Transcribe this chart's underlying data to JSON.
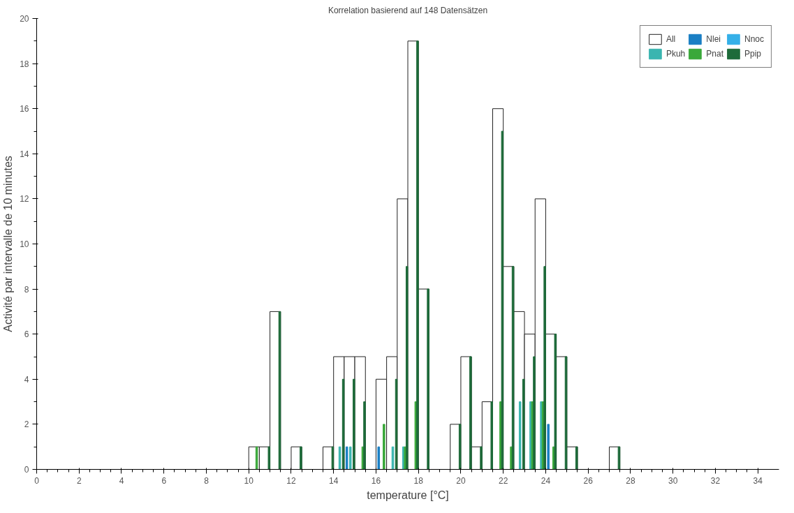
{
  "chart_data": {
    "type": "bar",
    "title": "Korrelation basierend auf 148 Datensätzen",
    "xlabel": "temperature [°C]",
    "ylabel": "Activité par intervalle de 10 minutes",
    "x": [
      10.25,
      10.75,
      11.25,
      12.25,
      13.75,
      14.25,
      14.75,
      15.25,
      16.25,
      16.75,
      17.25,
      17.75,
      18.25,
      19.75,
      20.25,
      20.75,
      21.25,
      21.75,
      22.25,
      22.75,
      23.25,
      23.75,
      24.25,
      24.75,
      25.25,
      27.25
    ],
    "series": [
      {
        "name": "All",
        "color": "#ffffff",
        "values": [
          1,
          1,
          7,
          1,
          1,
          5,
          5,
          5,
          4,
          5,
          12,
          19,
          8,
          2,
          5,
          1,
          3,
          16,
          9,
          7,
          6,
          12,
          6,
          5,
          1,
          1
        ]
      },
      {
        "name": "Nlei",
        "color": "#1a7fc4",
        "values": [
          0,
          0,
          0,
          0,
          0,
          0,
          1,
          0,
          1,
          0,
          0,
          0,
          0,
          0,
          0,
          0,
          0,
          0,
          0,
          0,
          0,
          0,
          2,
          0,
          0,
          0
        ]
      },
      {
        "name": "Nnoc",
        "color": "#35b0e8",
        "values": [
          0,
          0,
          0,
          0,
          0,
          0,
          0,
          0,
          0,
          0,
          0,
          0,
          0,
          0,
          0,
          0,
          0,
          0,
          0,
          0,
          0,
          0,
          0,
          0,
          0,
          0
        ]
      },
      {
        "name": "Pkuh",
        "color": "#3ab5b0",
        "values": [
          0,
          0,
          0,
          0,
          0,
          1,
          1,
          0,
          0,
          1,
          1,
          0,
          0,
          0,
          0,
          0,
          0,
          0,
          0,
          3,
          3,
          3,
          0,
          0,
          0,
          0
        ]
      },
      {
        "name": "Pnat",
        "color": "#3aa83a",
        "values": [
          1,
          0,
          0,
          0,
          0,
          0,
          0,
          1,
          2,
          0,
          1,
          3,
          0,
          0,
          0,
          0,
          0,
          3,
          1,
          0,
          3,
          3,
          1,
          0,
          0,
          0
        ]
      },
      {
        "name": "Ppip",
        "color": "#1e6b3a",
        "values": [
          0,
          1,
          7,
          1,
          1,
          4,
          4,
          3,
          0,
          4,
          9,
          19,
          8,
          2,
          5,
          1,
          3,
          15,
          9,
          4,
          5,
          9,
          6,
          5,
          1,
          1
        ]
      }
    ],
    "xlim": [
      0,
      35
    ],
    "xticks": [
      0,
      2,
      4,
      6,
      8,
      10,
      12,
      14,
      16,
      18,
      20,
      22,
      24,
      26,
      28,
      30,
      32,
      34
    ],
    "ylim": [
      0,
      20
    ],
    "yticks": [
      0,
      2,
      4,
      6,
      8,
      10,
      12,
      14,
      16,
      18,
      20
    ],
    "grid": false,
    "legend": "top right"
  }
}
